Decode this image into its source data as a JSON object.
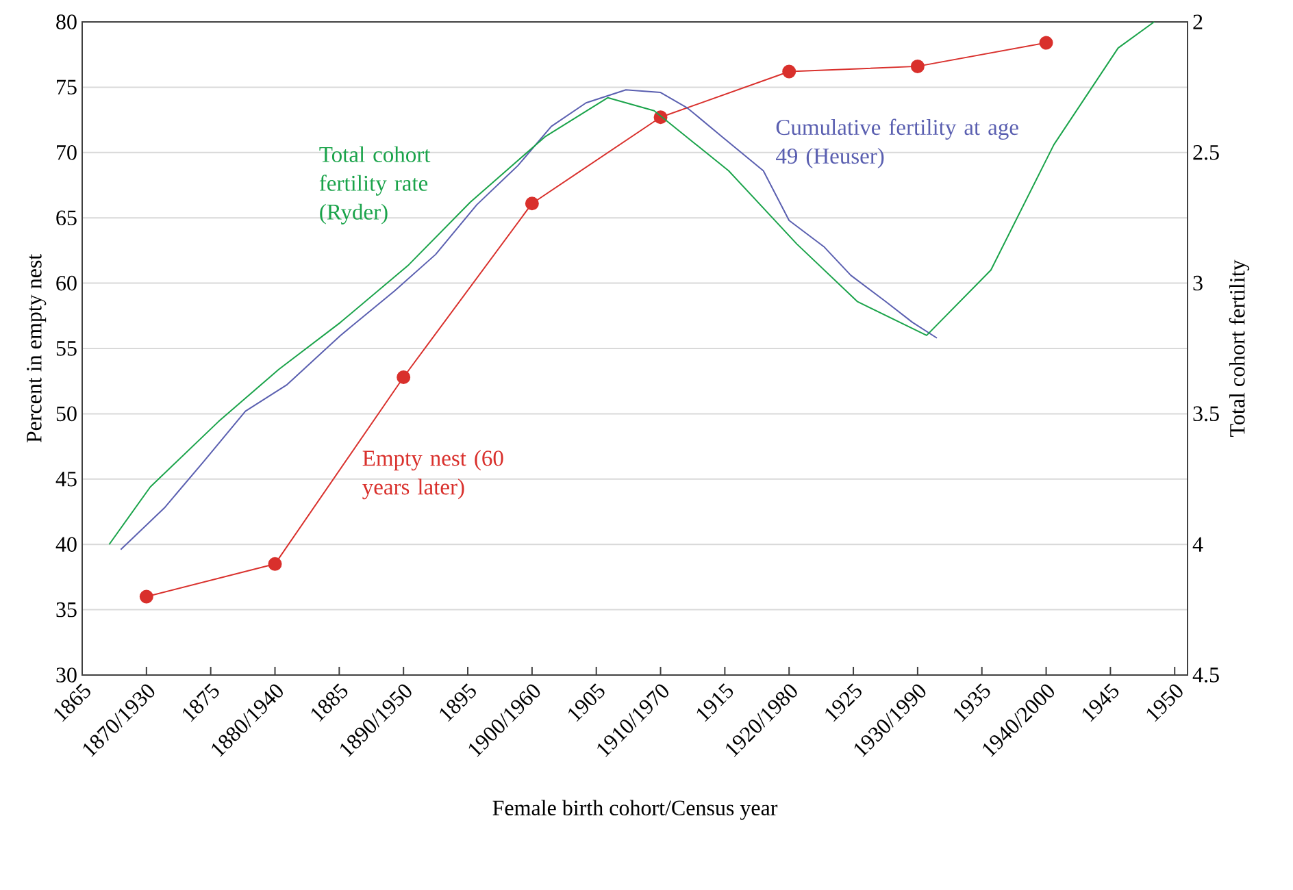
{
  "chart_data": {
    "type": "line",
    "xlabel": "Female birth cohort/Census year",
    "ylabel": "Percent in empty nest",
    "y2label": "Total cohort fertility",
    "xlim": [
      1865,
      1951
    ],
    "xticks": [
      1865,
      {
        "value": 1870,
        "label": "1870/1930"
      },
      1875,
      {
        "value": 1880,
        "label": "1880/1940"
      },
      1885,
      {
        "value": 1890,
        "label": "1890/1950"
      },
      1895,
      {
        "value": 1900,
        "label": "1900/1960"
      },
      1905,
      {
        "value": 1910,
        "label": "1910/1970"
      },
      1915,
      {
        "value": 1920,
        "label": "1920/1980"
      },
      1925,
      {
        "value": 1930,
        "label": "1930/1990"
      },
      1935,
      {
        "value": 1940,
        "label": "1940/2000"
      },
      1945,
      1950
    ],
    "ylim": [
      30,
      80
    ],
    "yticks": [
      30,
      35,
      40,
      45,
      50,
      55,
      60,
      65,
      70,
      75,
      80
    ],
    "y2lim": [
      4.5,
      2
    ],
    "y2ticks": [
      2,
      2.5,
      3,
      3.5,
      4,
      4.5
    ],
    "grid": "y",
    "legend": false,
    "series": [
      {
        "name": "Empty nest (60 years later)",
        "color": "#d9302c",
        "marker": "circle",
        "x": [
          1870,
          1880,
          1890,
          1900,
          1910,
          1920,
          1930,
          1940
        ],
        "values": [
          36,
          38.5,
          52.8,
          66.1,
          72.7,
          76.2,
          76.6,
          78.4
        ]
      },
      {
        "name": "Cumulative fertility at age 49 (Heuser)",
        "color": "#5a5fb0",
        "axis": "y2",
        "x": [
          1868,
          1871.4,
          1874.5,
          1877.7,
          1880.9,
          1885.1,
          1889.3,
          1892.5,
          1895.7,
          1898.9,
          1901.5,
          1904.2,
          1907.3,
          1910,
          1912.1,
          1914.8,
          1918,
          1920,
          1922.7,
          1924.8,
          1927.5,
          1929.6,
          1931.5
        ],
        "values": [
          4.02,
          3.86,
          3.68,
          3.49,
          3.39,
          3.2,
          3.03,
          2.89,
          2.7,
          2.55,
          2.4,
          2.31,
          2.26,
          2.27,
          2.33,
          2.44,
          2.57,
          2.76,
          2.86,
          2.97,
          3.07,
          3.15,
          3.21
        ]
      },
      {
        "name": "Total cohort fertility rate (Ryder)",
        "color": "#1aa34a",
        "axis": "y2",
        "x": [
          1867.1,
          1870.3,
          1875.6,
          1880.3,
          1885.1,
          1890.4,
          1895.2,
          1901,
          1905.9,
          1909.5,
          1915.3,
          1920.6,
          1925.3,
          1930.7,
          1935.7,
          1940.6,
          1945.6,
          1948.4
        ],
        "values": [
          4.0,
          3.78,
          3.53,
          3.33,
          3.15,
          2.93,
          2.69,
          2.44,
          2.29,
          2.34,
          2.57,
          2.85,
          3.07,
          3.2,
          2.95,
          2.47,
          2.1,
          2.0
        ]
      }
    ]
  }
}
